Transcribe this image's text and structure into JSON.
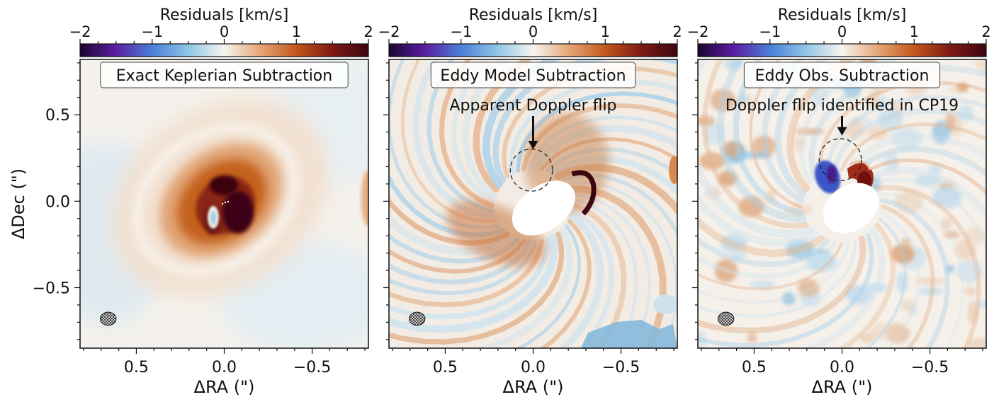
{
  "chart_data": [
    {
      "type": "heatmap",
      "title": "Exact Keplerian Subtraction",
      "xlabel": "ΔRA (\")",
      "ylabel": "ΔDec (\")",
      "xlim": [
        0.82,
        -0.82
      ],
      "ylim": [
        -0.85,
        0.82
      ],
      "x_ticks": [
        0.5,
        0.0,
        -0.5
      ],
      "x_tick_labels": [
        "0.5",
        "0.0",
        "−0.5"
      ],
      "y_ticks": [
        0.5,
        0.0,
        -0.5
      ],
      "y_tick_labels": [
        "0.5",
        "0.0",
        "−0.5"
      ],
      "colorbar": {
        "label": "Residuals [km/s]",
        "range": [
          -2,
          2
        ],
        "ticks": [
          -2,
          -1,
          0,
          1,
          2
        ],
        "tick_labels": [
          "−2",
          "−1",
          "0",
          "1",
          "2"
        ],
        "colors": [
          "#1b0530",
          "#5b1ea3",
          "#4a7fd8",
          "#8fc6e6",
          "#f6f4ef",
          "#e6a676",
          "#c2571c",
          "#7e1a14",
          "#3d0612"
        ]
      },
      "beam": {
        "x": 0.66,
        "y": -0.68,
        "rx": 0.045,
        "ry": 0.038
      },
      "annotations": [],
      "structure": "broad positive (red-brown) inner disk with a dark core and a pale spot near the center; faint pale arcs outward"
    },
    {
      "type": "heatmap",
      "title": "Eddy Model Subtraction",
      "xlabel": "ΔRA (\")",
      "x_ticks": [
        0.5,
        0.0,
        -0.5
      ],
      "x_tick_labels": [
        "0.5",
        "0.0",
        "−0.5"
      ],
      "colorbar": {
        "label": "Residuals [km/s]",
        "range": [
          -2,
          2
        ],
        "ticks": [
          -2,
          -1,
          0,
          1,
          2
        ],
        "tick_labels": [
          "−2",
          "−1",
          "0",
          "1",
          "2"
        ]
      },
      "beam": {
        "x": 0.66,
        "y": -0.68,
        "rx": 0.045,
        "ry": 0.038
      },
      "masked_center": {
        "x": -0.06,
        "y": -0.04,
        "rx": 0.2,
        "ry": 0.13
      },
      "dashed_circle": {
        "x": 0.01,
        "y": 0.18,
        "r": 0.12
      },
      "annotations": [
        {
          "text": "Apparent Doppler flip",
          "x": 0.0,
          "y": 0.58,
          "arrow_to": [
            0.0,
            0.3
          ]
        }
      ],
      "structure": "spiral pattern of alternating positive and negative residual streaks around a masked inner ellipse"
    },
    {
      "type": "heatmap",
      "title": "Eddy Obs. Subtraction",
      "xlabel": "ΔRA (\")",
      "x_ticks": [
        0.5,
        0.0,
        -0.5
      ],
      "x_tick_labels": [
        "0.5",
        "0.0",
        "−0.5"
      ],
      "colorbar": {
        "label": "Residuals [km/s]",
        "range": [
          -2,
          2
        ],
        "ticks": [
          -2,
          -1,
          0,
          1,
          2
        ],
        "tick_labels": [
          "−2",
          "−1",
          "0",
          "1",
          "2"
        ]
      },
      "beam": {
        "x": 0.66,
        "y": -0.68,
        "rx": 0.045,
        "ry": 0.038
      },
      "masked_center": {
        "x": -0.05,
        "y": -0.04,
        "rx": 0.17,
        "ry": 0.13
      },
      "dashed_circle": {
        "x": 0.01,
        "y": 0.24,
        "r": 0.12
      },
      "annotations": [
        {
          "text": "Doppler flip identified in CP19",
          "x": 0.0,
          "y": 0.58,
          "arrow_to": [
            0.0,
            0.38
          ]
        }
      ],
      "structure": "patchy mottled residuals with a blue/red Doppler-flip pair next to the masked center"
    }
  ]
}
